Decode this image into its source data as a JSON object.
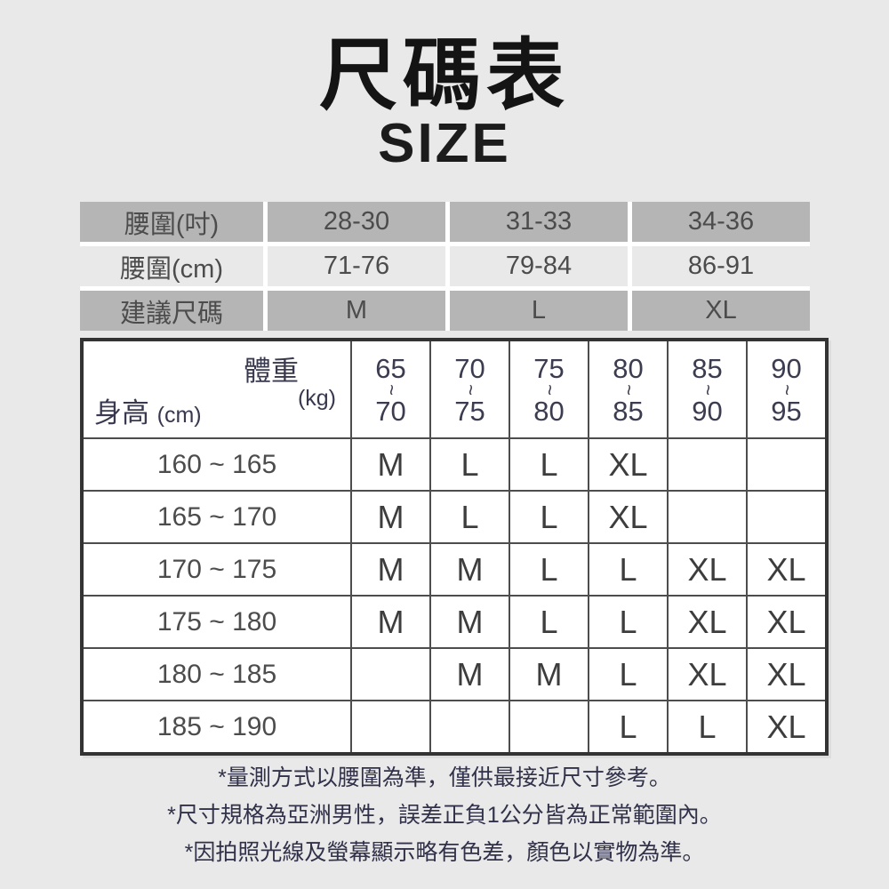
{
  "title": {
    "zh": "尺碼表",
    "en": "SIZE"
  },
  "waist_table": {
    "rows": [
      {
        "label": "腰圍(吋)",
        "values": [
          "28-30",
          "31-33",
          "34-36"
        ],
        "shaded": true
      },
      {
        "label": "腰圍(cm)",
        "values": [
          "71-76",
          "79-84",
          "86-91"
        ],
        "shaded": false
      },
      {
        "label": "建議尺碼",
        "values": [
          "M",
          "L",
          "XL"
        ],
        "shaded": true
      }
    ]
  },
  "size_matrix": {
    "corner": {
      "weight_label": "體重",
      "weight_unit": "(kg)",
      "height_label": "身高",
      "height_unit": "(cm)"
    },
    "tilde": "~",
    "weight_columns": [
      {
        "from": "65",
        "to": "70"
      },
      {
        "from": "70",
        "to": "75"
      },
      {
        "from": "75",
        "to": "80"
      },
      {
        "from": "80",
        "to": "85"
      },
      {
        "from": "85",
        "to": "90"
      },
      {
        "from": "90",
        "to": "95"
      }
    ],
    "rows": [
      {
        "height_range": "160 ~ 165",
        "cells": [
          "M",
          "L",
          "L",
          "XL",
          "",
          ""
        ]
      },
      {
        "height_range": "165 ~ 170",
        "cells": [
          "M",
          "L",
          "L",
          "XL",
          "",
          ""
        ]
      },
      {
        "height_range": "170 ~ 175",
        "cells": [
          "M",
          "M",
          "L",
          "L",
          "XL",
          "XL"
        ]
      },
      {
        "height_range": "175 ~ 180",
        "cells": [
          "M",
          "M",
          "L",
          "L",
          "XL",
          "XL"
        ]
      },
      {
        "height_range": "180 ~ 185",
        "cells": [
          "",
          "M",
          "M",
          "L",
          "XL",
          "XL"
        ]
      },
      {
        "height_range": "185 ~ 190",
        "cells": [
          "",
          "",
          "",
          "L",
          "L",
          "XL"
        ]
      }
    ]
  },
  "notes": [
    "*量測方式以腰圍為準，僅供最接近尺寸參考。",
    "*尺寸規格為亞洲男性，誤差正負1公分皆為正常範圍內。",
    "*因拍照光線及螢幕顯示略有色差，顏色以實物為準。"
  ],
  "colors": {
    "background": "#e9e9e9",
    "shaded_row": "#b5b5b5",
    "cell_m": "#cbcbcb",
    "cell_l": "#b1b1b1",
    "cell_xl": "#9c9c9c",
    "table_border": "#333333",
    "header_text": "#38384f",
    "note_text": "#31314a",
    "title_text": "#141414"
  }
}
